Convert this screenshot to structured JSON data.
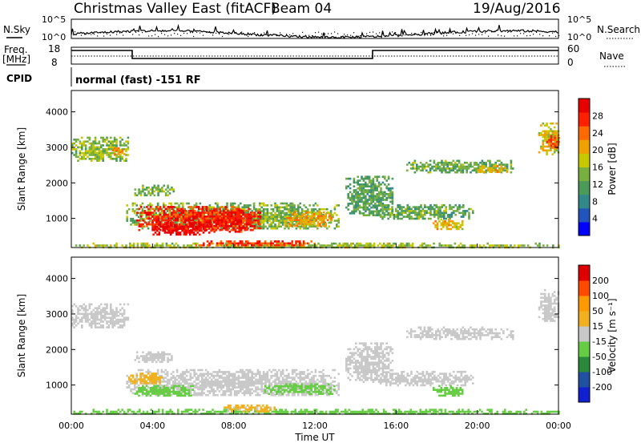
{
  "header": {
    "station": "Christmas Valley East (fitACF)",
    "beam": "Beam 04",
    "date": "19/Aug/2016"
  },
  "top_panels": {
    "nsky_label": "N.Sky",
    "nsearch_label": "N.Search",
    "noise_ticks": [
      "10^5",
      "10^0"
    ],
    "freq_label_line1": "Freq.",
    "freq_label_line2": "[MHz]",
    "freq_ticks": [
      "18",
      "8"
    ],
    "nave_label": "Nave",
    "nave_ticks": [
      "60",
      "0"
    ],
    "cpid_label": "CPID",
    "cpid_text": "normal (fast) -151 RF"
  },
  "chart_data": [
    {
      "type": "heatmap",
      "name": "power-panel",
      "ylabel": "Slant Range [km]",
      "xlabel": "",
      "x_ticks": [
        "00:00",
        "04:00",
        "08:00",
        "12:00",
        "16:00",
        "20:00",
        "00:00"
      ],
      "x_range_hours": [
        0,
        24
      ],
      "y_range_km": [
        180,
        4600
      ],
      "y_ticks": [
        1000,
        2000,
        3000,
        4000
      ],
      "colorbar": {
        "label": "Power [dB]",
        "ticks": [
          "4",
          "8",
          "12",
          "16",
          "20",
          "24",
          "28"
        ],
        "range": [
          0,
          30
        ]
      },
      "blobs": [
        {
          "t0": 0.0,
          "t1": 2.8,
          "r0": 2600,
          "r1": 3300,
          "value": 14
        },
        {
          "t0": 2.0,
          "t1": 2.6,
          "r0": 2800,
          "r1": 3000,
          "value": 21
        },
        {
          "t0": 3.1,
          "t1": 5.0,
          "r0": 1650,
          "r1": 1950,
          "value": 13
        },
        {
          "t0": 2.7,
          "t1": 13.2,
          "r0": 700,
          "r1": 1450,
          "value": 13
        },
        {
          "t0": 3.2,
          "t1": 9.3,
          "r0": 650,
          "r1": 1350,
          "value": 26
        },
        {
          "t0": 4.0,
          "t1": 7.0,
          "r0": 550,
          "r1": 900,
          "value": 29
        },
        {
          "t0": 7.0,
          "t1": 8.8,
          "r0": 650,
          "r1": 1250,
          "value": 27
        },
        {
          "t0": 10.5,
          "t1": 12.8,
          "r0": 800,
          "r1": 1200,
          "value": 20
        },
        {
          "t0": 0.0,
          "t1": 24.0,
          "r0": 180,
          "r1": 320,
          "value": 15
        },
        {
          "t0": 6.0,
          "t1": 12.0,
          "r0": 250,
          "r1": 380,
          "value": 25
        },
        {
          "t0": 13.5,
          "t1": 15.8,
          "r0": 1100,
          "r1": 2200,
          "value": 11
        },
        {
          "t0": 15.0,
          "t1": 19.8,
          "r0": 1000,
          "r1": 1400,
          "value": 12
        },
        {
          "t0": 17.8,
          "t1": 19.3,
          "r0": 700,
          "r1": 1000,
          "value": 18
        },
        {
          "t0": 16.5,
          "t1": 21.8,
          "r0": 2300,
          "r1": 2650,
          "value": 12
        },
        {
          "t0": 20.0,
          "t1": 21.5,
          "r0": 2300,
          "r1": 2500,
          "value": 18
        },
        {
          "t0": 23.0,
          "t1": 24.0,
          "r0": 2800,
          "r1": 3700,
          "value": 17
        },
        {
          "t0": 23.4,
          "t1": 24.0,
          "r0": 3000,
          "r1": 3400,
          "value": 23
        }
      ]
    },
    {
      "type": "heatmap",
      "name": "velocity-panel",
      "ylabel": "Slant Range [km]",
      "xlabel": "Time UT",
      "x_ticks": [
        "00:00",
        "04:00",
        "08:00",
        "12:00",
        "16:00",
        "20:00",
        "00:00"
      ],
      "x_range_hours": [
        0,
        24
      ],
      "y_range_km": [
        180,
        4600
      ],
      "y_ticks": [
        1000,
        2000,
        3000,
        4000
      ],
      "colorbar": {
        "label": "Velocity [m s⁻¹]",
        "ticks": [
          "200",
          "100",
          "50",
          "15",
          "-15",
          "-50",
          "-100",
          "-200"
        ],
        "range": [
          -250,
          250
        ]
      },
      "blobs": [
        {
          "t0": 0.0,
          "t1": 2.8,
          "r0": 2600,
          "r1": 3300,
          "value": 0
        },
        {
          "t0": 3.1,
          "t1": 5.0,
          "r0": 1650,
          "r1": 1950,
          "value": 0
        },
        {
          "t0": 2.7,
          "t1": 13.2,
          "r0": 700,
          "r1": 1450,
          "value": 0
        },
        {
          "t0": 2.8,
          "t1": 4.5,
          "r0": 1050,
          "r1": 1350,
          "value": 40
        },
        {
          "t0": 3.0,
          "t1": 6.0,
          "r0": 700,
          "r1": 1000,
          "value": -45
        },
        {
          "t0": 9.5,
          "t1": 13.0,
          "r0": 750,
          "r1": 1050,
          "value": -40
        },
        {
          "t0": 0.0,
          "t1": 24.0,
          "r0": 180,
          "r1": 330,
          "value": -45
        },
        {
          "t0": 7.5,
          "t1": 10.0,
          "r0": 250,
          "r1": 450,
          "value": 35
        },
        {
          "t0": 13.5,
          "t1": 15.8,
          "r0": 1100,
          "r1": 2200,
          "value": 0
        },
        {
          "t0": 15.0,
          "t1": 19.8,
          "r0": 1000,
          "r1": 1400,
          "value": 0
        },
        {
          "t0": 17.8,
          "t1": 19.3,
          "r0": 700,
          "r1": 1000,
          "value": -40
        },
        {
          "t0": 16.5,
          "t1": 21.8,
          "r0": 2300,
          "r1": 2650,
          "value": 0
        },
        {
          "t0": 23.0,
          "t1": 24.0,
          "r0": 2800,
          "r1": 3700,
          "value": 0
        }
      ]
    }
  ],
  "colors": {
    "power_scale": [
      "#0000ff",
      "#2255bb",
      "#33888a",
      "#4a9a5a",
      "#78b040",
      "#c8c800",
      "#f0a000",
      "#ff6a00",
      "#ff2000",
      "#e80000"
    ],
    "velocity_scale": [
      "#e00000",
      "#ff4a00",
      "#ff9900",
      "#f0b020",
      "#c8c8c8",
      "#66cc44",
      "#2a8a3a",
      "#2050a0",
      "#1020d0"
    ]
  }
}
